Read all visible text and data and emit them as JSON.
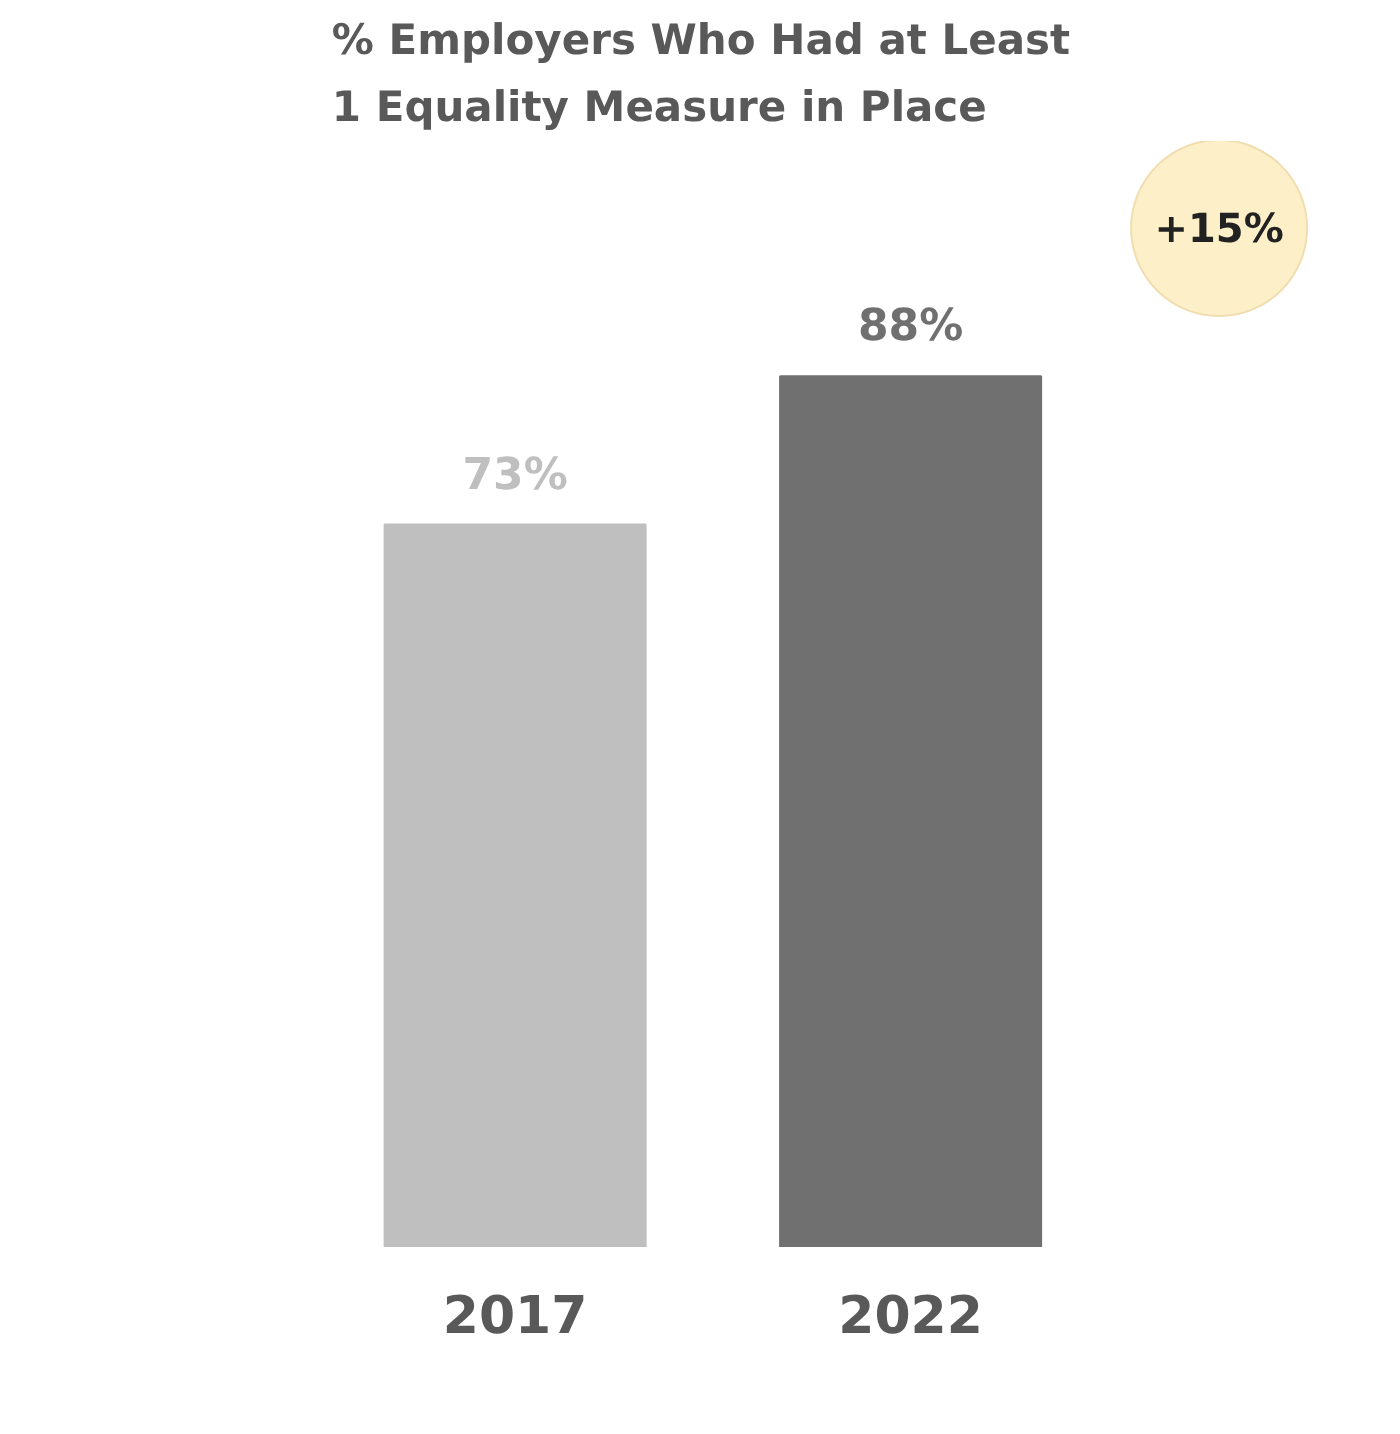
{
  "chart_data": {
    "type": "bar",
    "title": "% Employers Who Had at Least 1 Equality Measure in Place",
    "categories": [
      "2017",
      "2022"
    ],
    "values": [
      73,
      88
    ],
    "colors": [
      "#bfbfbf",
      "#707070"
    ],
    "value_labels": [
      "73%",
      "88%"
    ],
    "annotations": [
      "+15%"
    ],
    "grid": false
  }
}
